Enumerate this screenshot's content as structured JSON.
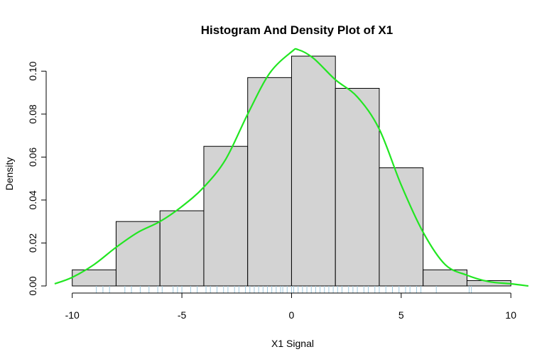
{
  "chart_data": {
    "type": "bar",
    "title": "Histogram And Density Plot of X1",
    "xlabel": "X1 Signal",
    "ylabel": "Density",
    "xlim": [
      -10.8,
      10.9
    ],
    "ylim": [
      0,
      0.11
    ],
    "x_ticks": [
      -10,
      -5,
      0,
      5,
      10
    ],
    "x_tick_labels": [
      "-10",
      "-5",
      "0",
      "5",
      "10"
    ],
    "y_ticks": [
      0,
      0.02,
      0.04,
      0.06,
      0.08,
      0.1
    ],
    "y_tick_labels": [
      "0.00",
      "0.02",
      "0.04",
      "0.06",
      "0.08",
      "0.10"
    ],
    "histogram": {
      "bin_edges": [
        -10,
        -8,
        -6,
        -4,
        -2,
        0,
        2,
        4,
        6,
        8,
        10
      ],
      "densities": [
        0.0075,
        0.03,
        0.035,
        0.065,
        0.097,
        0.107,
        0.092,
        0.055,
        0.0075,
        0.0025
      ],
      "fill_color": "#d3d3d3",
      "border_color": "#000000"
    },
    "density_curve": {
      "color": "#22e622",
      "x": [
        -10.8,
        -10.0,
        -9.0,
        -8.0,
        -7.0,
        -6.0,
        -5.0,
        -4.0,
        -3.0,
        -2.0,
        -1.0,
        0.0,
        0.3,
        1.0,
        2.0,
        3.0,
        4.0,
        5.0,
        6.0,
        7.0,
        8.0,
        9.0,
        10.0,
        10.8
      ],
      "y": [
        0.001,
        0.004,
        0.01,
        0.018,
        0.025,
        0.03,
        0.037,
        0.046,
        0.059,
        0.08,
        0.099,
        0.109,
        0.11,
        0.106,
        0.096,
        0.088,
        0.073,
        0.047,
        0.025,
        0.01,
        0.005,
        0.002,
        0.001,
        0.0
      ]
    },
    "rug": {
      "color": "#9ec9df",
      "values": [
        -8.9,
        -8.6,
        -8.3,
        -7.6,
        -7.3,
        -6.9,
        -6.5,
        -6.1,
        -5.9,
        -5.4,
        -5.2,
        -5.0,
        -4.6,
        -4.3,
        -3.9,
        -3.7,
        -3.4,
        -3.1,
        -2.9,
        -2.6,
        -2.4,
        -2.1,
        -1.9,
        -1.7,
        -1.5,
        -1.3,
        -1.1,
        -0.9,
        -0.7,
        -0.5,
        -0.4,
        -0.2,
        0.0,
        0.1,
        0.3,
        0.5,
        0.7,
        0.9,
        1.1,
        1.3,
        1.5,
        1.7,
        1.9,
        2.1,
        2.3,
        2.6,
        2.8,
        3.0,
        3.3,
        3.5,
        3.8,
        4.0,
        4.3,
        4.6,
        4.9,
        5.2,
        5.4,
        5.7,
        5.9,
        6.6,
        8.1,
        8.2
      ]
    }
  }
}
